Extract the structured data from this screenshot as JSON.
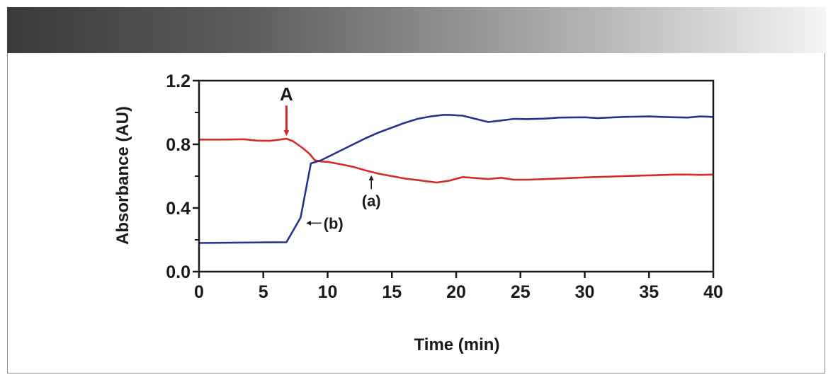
{
  "chart_data": {
    "type": "line",
    "title": "",
    "xlabel": "Time (min)",
    "ylabel": "Absorbance (AU)",
    "xlim": [
      0,
      40
    ],
    "ylim": [
      0.0,
      1.2
    ],
    "x_ticks": [
      "0",
      "5",
      "10",
      "15",
      "20",
      "25",
      "30",
      "35",
      "40"
    ],
    "y_ticks": [
      "0.0",
      "0.4",
      "0.8",
      "1.2"
    ],
    "grid": false,
    "series": [
      {
        "name": "(a)",
        "color": "#d42a2a",
        "x": [
          0,
          2,
          3.5,
          4.5,
          5.5,
          6.3,
          6.8,
          7.3,
          8,
          8.6,
          9,
          9.5,
          10,
          11,
          12,
          13,
          14,
          15,
          16,
          17,
          17.5,
          18.5,
          19.5,
          20.5,
          21.5,
          22.5,
          23.5,
          24.5,
          25.5,
          27,
          30,
          33,
          35,
          37,
          38,
          39,
          40
        ],
        "values": [
          0.83,
          0.83,
          0.832,
          0.823,
          0.822,
          0.83,
          0.835,
          0.82,
          0.78,
          0.74,
          0.7,
          0.692,
          0.69,
          0.675,
          0.658,
          0.635,
          0.615,
          0.6,
          0.585,
          0.575,
          0.57,
          0.56,
          0.572,
          0.594,
          0.588,
          0.582,
          0.59,
          0.578,
          0.578,
          0.582,
          0.592,
          0.6,
          0.605,
          0.61,
          0.61,
          0.608,
          0.61
        ]
      },
      {
        "name": "(b)",
        "color": "#25328e",
        "x": [
          0,
          6.8,
          7.9,
          8.7,
          9.5,
          10,
          11,
          12,
          13,
          14,
          15,
          16,
          17,
          18,
          19,
          19.5,
          20.5,
          21.5,
          22.5,
          23.5,
          24.5,
          25.5,
          27,
          28,
          30,
          31,
          33,
          35,
          36,
          37,
          38,
          39,
          40
        ],
        "values": [
          0.18,
          0.185,
          0.34,
          0.68,
          0.7,
          0.72,
          0.76,
          0.8,
          0.84,
          0.875,
          0.905,
          0.935,
          0.96,
          0.975,
          0.985,
          0.985,
          0.98,
          0.96,
          0.94,
          0.95,
          0.96,
          0.958,
          0.962,
          0.968,
          0.97,
          0.965,
          0.972,
          0.975,
          0.972,
          0.97,
          0.968,
          0.975,
          0.972
        ]
      }
    ],
    "annotations": [
      {
        "text": "A",
        "x": 6.8,
        "y": 0.835,
        "arrow": "down",
        "color": "#d42a2a"
      },
      {
        "text": "(a)",
        "x": 13.4,
        "y": 0.625,
        "arrow": "up",
        "color": "#1a1a1a"
      },
      {
        "text": "(b)",
        "x": 8.3,
        "y": 0.305,
        "arrow": "left",
        "color": "#1a1a1a"
      }
    ]
  }
}
